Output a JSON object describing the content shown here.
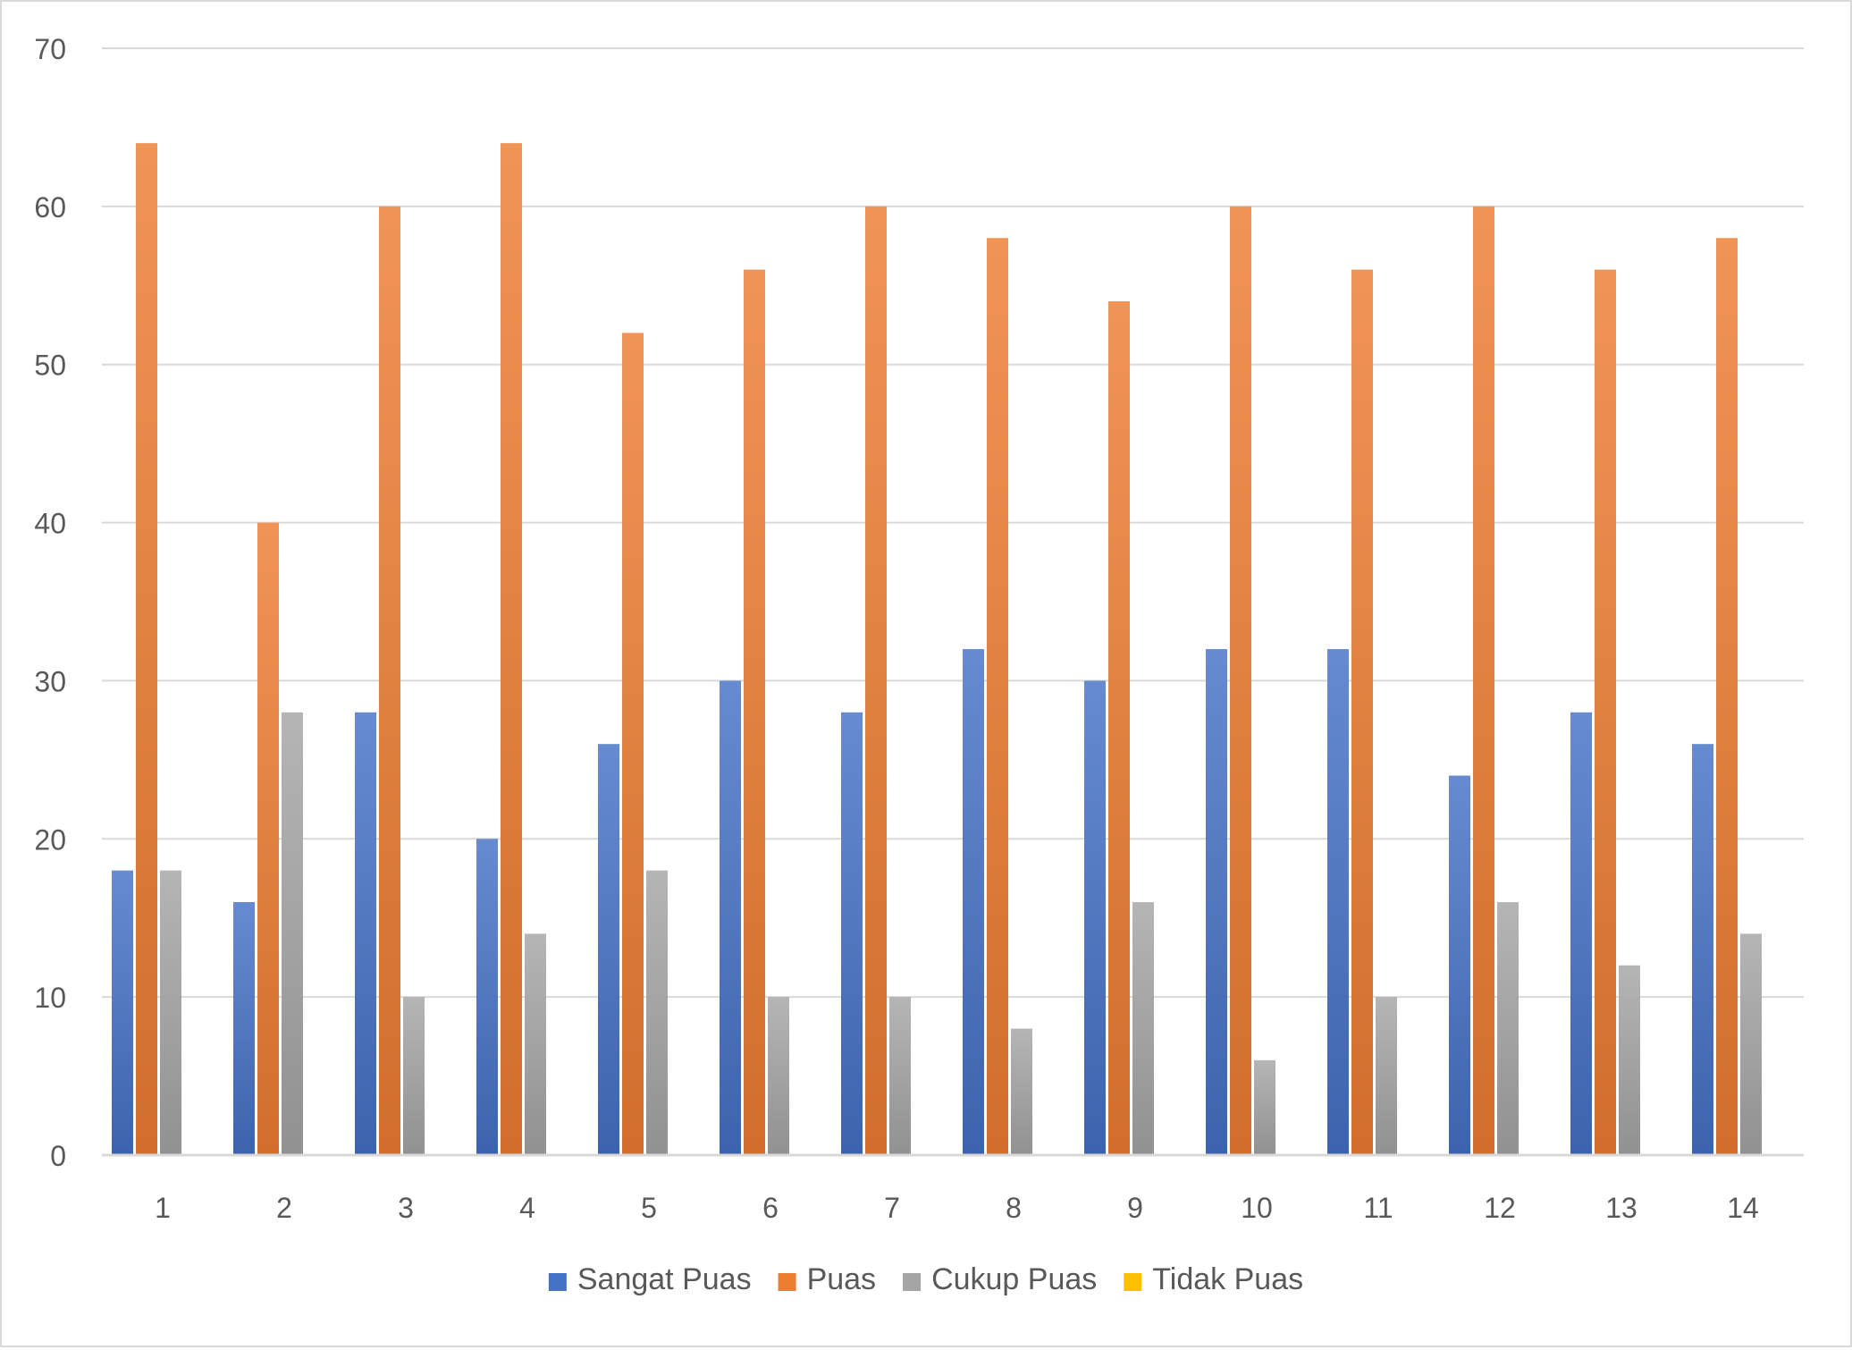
{
  "chart_data": {
    "type": "bar",
    "categories": [
      "1",
      "2",
      "3",
      "4",
      "5",
      "6",
      "7",
      "8",
      "9",
      "10",
      "11",
      "12",
      "13",
      "14"
    ],
    "series": [
      {
        "name": "Sangat Puas",
        "color": "#4472c4",
        "values": [
          18,
          16,
          28,
          20,
          26,
          30,
          28,
          32,
          30,
          32,
          32,
          24,
          28,
          26
        ]
      },
      {
        "name": "Puas",
        "color": "#ed7d31",
        "values": [
          64,
          40,
          60,
          64,
          52,
          56,
          60,
          58,
          54,
          60,
          56,
          60,
          56,
          58
        ]
      },
      {
        "name": "Cukup Puas",
        "color": "#a5a5a5",
        "values": [
          18,
          28,
          10,
          14,
          18,
          10,
          10,
          8,
          16,
          6,
          10,
          16,
          12,
          14
        ]
      },
      {
        "name": "Tidak Puas",
        "color": "#ffc000",
        "values": [
          0,
          0,
          0,
          0,
          0,
          0,
          0,
          0,
          0,
          0,
          0,
          0,
          0,
          0
        ]
      }
    ],
    "ylim": [
      0,
      70
    ],
    "yticks": [
      0,
      10,
      20,
      30,
      40,
      50,
      60,
      70
    ],
    "grid": true,
    "legend": "bottom",
    "title": "",
    "xlabel": "",
    "ylabel": ""
  }
}
